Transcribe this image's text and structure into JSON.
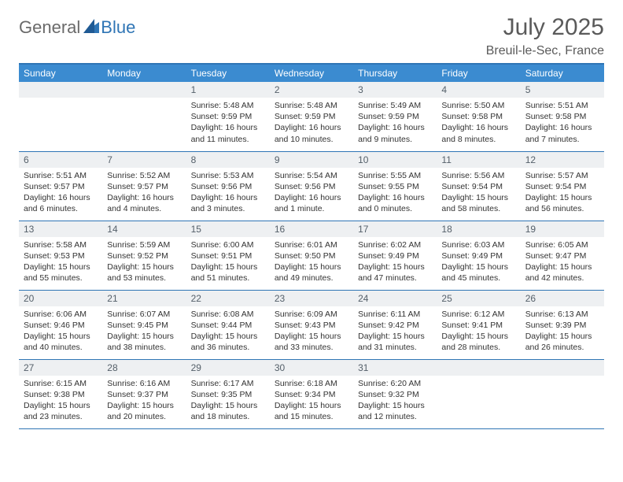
{
  "logo": {
    "part1": "General",
    "part2": "Blue"
  },
  "title": "July 2025",
  "location": "Breuil-le-Sec, France",
  "colors": {
    "header_bg": "#3b8bd0",
    "header_border": "#2f75b5",
    "daynum_bg": "#eef0f2",
    "logo_gray": "#6a6a6a",
    "logo_blue": "#2f75b5"
  },
  "dayHeaders": [
    "Sunday",
    "Monday",
    "Tuesday",
    "Wednesday",
    "Thursday",
    "Friday",
    "Saturday"
  ],
  "weeks": [
    [
      null,
      null,
      {
        "n": "1",
        "sr": "Sunrise: 5:48 AM",
        "ss": "Sunset: 9:59 PM",
        "dl1": "Daylight: 16 hours",
        "dl2": "and 11 minutes."
      },
      {
        "n": "2",
        "sr": "Sunrise: 5:48 AM",
        "ss": "Sunset: 9:59 PM",
        "dl1": "Daylight: 16 hours",
        "dl2": "and 10 minutes."
      },
      {
        "n": "3",
        "sr": "Sunrise: 5:49 AM",
        "ss": "Sunset: 9:59 PM",
        "dl1": "Daylight: 16 hours",
        "dl2": "and 9 minutes."
      },
      {
        "n": "4",
        "sr": "Sunrise: 5:50 AM",
        "ss": "Sunset: 9:58 PM",
        "dl1": "Daylight: 16 hours",
        "dl2": "and 8 minutes."
      },
      {
        "n": "5",
        "sr": "Sunrise: 5:51 AM",
        "ss": "Sunset: 9:58 PM",
        "dl1": "Daylight: 16 hours",
        "dl2": "and 7 minutes."
      }
    ],
    [
      {
        "n": "6",
        "sr": "Sunrise: 5:51 AM",
        "ss": "Sunset: 9:57 PM",
        "dl1": "Daylight: 16 hours",
        "dl2": "and 6 minutes."
      },
      {
        "n": "7",
        "sr": "Sunrise: 5:52 AM",
        "ss": "Sunset: 9:57 PM",
        "dl1": "Daylight: 16 hours",
        "dl2": "and 4 minutes."
      },
      {
        "n": "8",
        "sr": "Sunrise: 5:53 AM",
        "ss": "Sunset: 9:56 PM",
        "dl1": "Daylight: 16 hours",
        "dl2": "and 3 minutes."
      },
      {
        "n": "9",
        "sr": "Sunrise: 5:54 AM",
        "ss": "Sunset: 9:56 PM",
        "dl1": "Daylight: 16 hours",
        "dl2": "and 1 minute."
      },
      {
        "n": "10",
        "sr": "Sunrise: 5:55 AM",
        "ss": "Sunset: 9:55 PM",
        "dl1": "Daylight: 16 hours",
        "dl2": "and 0 minutes."
      },
      {
        "n": "11",
        "sr": "Sunrise: 5:56 AM",
        "ss": "Sunset: 9:54 PM",
        "dl1": "Daylight: 15 hours",
        "dl2": "and 58 minutes."
      },
      {
        "n": "12",
        "sr": "Sunrise: 5:57 AM",
        "ss": "Sunset: 9:54 PM",
        "dl1": "Daylight: 15 hours",
        "dl2": "and 56 minutes."
      }
    ],
    [
      {
        "n": "13",
        "sr": "Sunrise: 5:58 AM",
        "ss": "Sunset: 9:53 PM",
        "dl1": "Daylight: 15 hours",
        "dl2": "and 55 minutes."
      },
      {
        "n": "14",
        "sr": "Sunrise: 5:59 AM",
        "ss": "Sunset: 9:52 PM",
        "dl1": "Daylight: 15 hours",
        "dl2": "and 53 minutes."
      },
      {
        "n": "15",
        "sr": "Sunrise: 6:00 AM",
        "ss": "Sunset: 9:51 PM",
        "dl1": "Daylight: 15 hours",
        "dl2": "and 51 minutes."
      },
      {
        "n": "16",
        "sr": "Sunrise: 6:01 AM",
        "ss": "Sunset: 9:50 PM",
        "dl1": "Daylight: 15 hours",
        "dl2": "and 49 minutes."
      },
      {
        "n": "17",
        "sr": "Sunrise: 6:02 AM",
        "ss": "Sunset: 9:49 PM",
        "dl1": "Daylight: 15 hours",
        "dl2": "and 47 minutes."
      },
      {
        "n": "18",
        "sr": "Sunrise: 6:03 AM",
        "ss": "Sunset: 9:49 PM",
        "dl1": "Daylight: 15 hours",
        "dl2": "and 45 minutes."
      },
      {
        "n": "19",
        "sr": "Sunrise: 6:05 AM",
        "ss": "Sunset: 9:47 PM",
        "dl1": "Daylight: 15 hours",
        "dl2": "and 42 minutes."
      }
    ],
    [
      {
        "n": "20",
        "sr": "Sunrise: 6:06 AM",
        "ss": "Sunset: 9:46 PM",
        "dl1": "Daylight: 15 hours",
        "dl2": "and 40 minutes."
      },
      {
        "n": "21",
        "sr": "Sunrise: 6:07 AM",
        "ss": "Sunset: 9:45 PM",
        "dl1": "Daylight: 15 hours",
        "dl2": "and 38 minutes."
      },
      {
        "n": "22",
        "sr": "Sunrise: 6:08 AM",
        "ss": "Sunset: 9:44 PM",
        "dl1": "Daylight: 15 hours",
        "dl2": "and 36 minutes."
      },
      {
        "n": "23",
        "sr": "Sunrise: 6:09 AM",
        "ss": "Sunset: 9:43 PM",
        "dl1": "Daylight: 15 hours",
        "dl2": "and 33 minutes."
      },
      {
        "n": "24",
        "sr": "Sunrise: 6:11 AM",
        "ss": "Sunset: 9:42 PM",
        "dl1": "Daylight: 15 hours",
        "dl2": "and 31 minutes."
      },
      {
        "n": "25",
        "sr": "Sunrise: 6:12 AM",
        "ss": "Sunset: 9:41 PM",
        "dl1": "Daylight: 15 hours",
        "dl2": "and 28 minutes."
      },
      {
        "n": "26",
        "sr": "Sunrise: 6:13 AM",
        "ss": "Sunset: 9:39 PM",
        "dl1": "Daylight: 15 hours",
        "dl2": "and 26 minutes."
      }
    ],
    [
      {
        "n": "27",
        "sr": "Sunrise: 6:15 AM",
        "ss": "Sunset: 9:38 PM",
        "dl1": "Daylight: 15 hours",
        "dl2": "and 23 minutes."
      },
      {
        "n": "28",
        "sr": "Sunrise: 6:16 AM",
        "ss": "Sunset: 9:37 PM",
        "dl1": "Daylight: 15 hours",
        "dl2": "and 20 minutes."
      },
      {
        "n": "29",
        "sr": "Sunrise: 6:17 AM",
        "ss": "Sunset: 9:35 PM",
        "dl1": "Daylight: 15 hours",
        "dl2": "and 18 minutes."
      },
      {
        "n": "30",
        "sr": "Sunrise: 6:18 AM",
        "ss": "Sunset: 9:34 PM",
        "dl1": "Daylight: 15 hours",
        "dl2": "and 15 minutes."
      },
      {
        "n": "31",
        "sr": "Sunrise: 6:20 AM",
        "ss": "Sunset: 9:32 PM",
        "dl1": "Daylight: 15 hours",
        "dl2": "and 12 minutes."
      },
      null,
      null
    ]
  ]
}
